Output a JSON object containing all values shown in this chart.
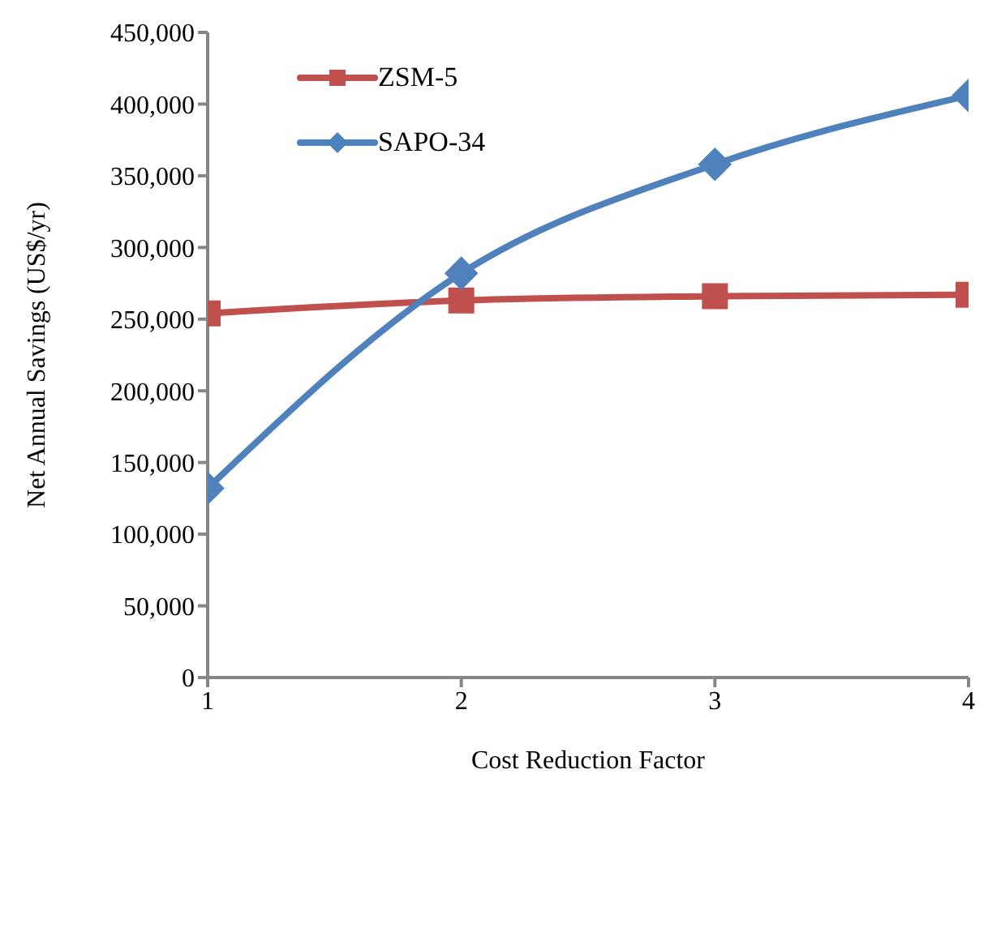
{
  "chart_data": {
    "type": "line",
    "xlabel": "Cost Reduction Factor",
    "ylabel": "Net Annual Savings (US$/yr)",
    "x": [
      1,
      2,
      3,
      4
    ],
    "xlim": [
      1,
      4
    ],
    "xticks": [
      1,
      2,
      3,
      4
    ],
    "ylim": [
      0,
      450000
    ],
    "yticks": [
      {
        "value": 0,
        "label": "0"
      },
      {
        "value": 50000,
        "label": "50,000"
      },
      {
        "value": 100000,
        "label": "100,000"
      },
      {
        "value": 150000,
        "label": "150,000"
      },
      {
        "value": 200000,
        "label": "200,000"
      },
      {
        "value": 250000,
        "label": "250,000"
      },
      {
        "value": 300000,
        "label": "300,000"
      },
      {
        "value": 350000,
        "label": "350,000"
      },
      {
        "value": 400000,
        "label": "400,000"
      },
      {
        "value": 450000,
        "label": "450,000"
      }
    ],
    "grid": false,
    "legend": "top left",
    "line_style": "solid",
    "series": [
      {
        "name": "ZSM-5",
        "color": "#c0504d",
        "marker": "square",
        "values": [
          254000,
          263000,
          266000,
          267000
        ]
      },
      {
        "name": "SAPO-34",
        "color": "#4f81bd",
        "marker": "diamond",
        "values": [
          132000,
          282000,
          358000,
          406000
        ]
      }
    ]
  }
}
